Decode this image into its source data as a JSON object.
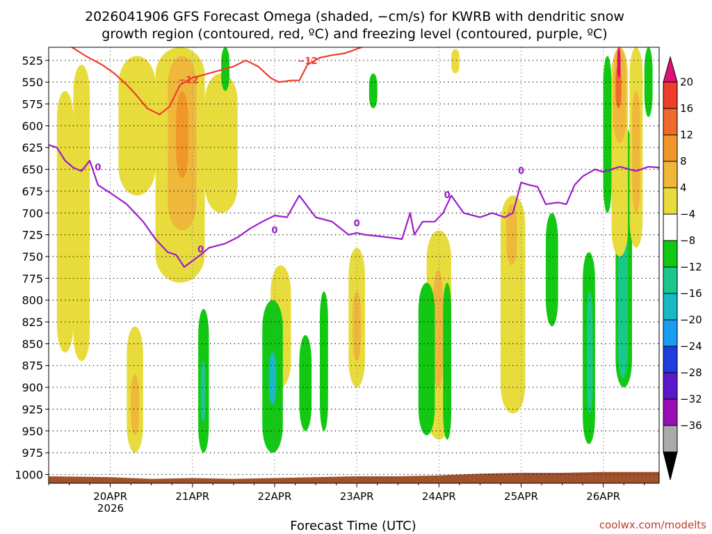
{
  "chart_data": {
    "type": "heatmap",
    "title_line1": "2026041906 GFS Forecast Omega (shaded, −cm/s) for KWRB with dendritic snow",
    "title_line2": "growth region (contoured, red, ºC) and freezing level (contoured, purple, ºC)",
    "xlabel": "Forecast Time (UTC)",
    "credit": "coolwx.com/modelts",
    "y_axis": {
      "unit": "hPa",
      "range": [
        510,
        1010
      ],
      "ticks": [
        525,
        550,
        575,
        600,
        625,
        650,
        675,
        700,
        725,
        750,
        775,
        800,
        825,
        850,
        875,
        900,
        925,
        950,
        975,
        1000
      ],
      "tick_labels": [
        "525",
        "550",
        "575",
        "600",
        "625",
        "650",
        "675",
        "700",
        "725",
        "750",
        "775",
        "800",
        "825",
        "850",
        "875",
        "900",
        "925",
        "950",
        "975",
        "1000"
      ]
    },
    "x_axis": {
      "unit": "days since 2026-04-19 00Z",
      "range": [
        0.25,
        7.68
      ],
      "ticks": [
        1,
        2,
        3,
        4,
        5,
        6,
        7
      ],
      "tick_labels": [
        "20APR",
        "21APR",
        "22APR",
        "23APR",
        "24APR",
        "25APR",
        "26APR"
      ],
      "year_label": "2026"
    },
    "colorbar": {
      "labels": [
        "20",
        "16",
        "12",
        "8",
        "4",
        "−4",
        "−8",
        "−12",
        "−16",
        "−20",
        "−24",
        "−28",
        "−32",
        "−36"
      ],
      "colors": [
        "#e01077",
        "#f03c2b",
        "#f06a2b",
        "#f0962b",
        "#f0b83a",
        "#e8dc3c",
        "#ffffff",
        "#12c812",
        "#19c88a",
        "#17b9c7",
        "#1a9cf0",
        "#1e3ce0",
        "#5a18c8",
        "#9a0fb4",
        "#aaaaaa",
        "#000000"
      ]
    },
    "shading_colors": {
      "yellow": "#e8dc3c",
      "orange": "#f0b83a",
      "dark_orange": "#f0962b",
      "red": "#f06a2b",
      "magenta": "#e01077",
      "green": "#12c812",
      "teal": "#19c88a",
      "cyan": "#17b9c7",
      "ground": "#a0522d"
    },
    "contour_labels": {
      "dgz_red": "−12",
      "freezing_purple": "0"
    },
    "dgz_contour_minus12C": [
      [
        0.25,
        502
      ],
      [
        0.5,
        508
      ],
      [
        0.7,
        520
      ],
      [
        0.9,
        530
      ],
      [
        1.05,
        540
      ],
      [
        1.2,
        553
      ],
      [
        1.3,
        563
      ],
      [
        1.45,
        580
      ],
      [
        1.6,
        587
      ],
      [
        1.72,
        578
      ],
      [
        1.85,
        553
      ],
      [
        2.0,
        545
      ],
      [
        2.2,
        540
      ],
      [
        2.35,
        536
      ],
      [
        2.5,
        532
      ],
      [
        2.65,
        525
      ],
      [
        2.8,
        532
      ],
      [
        2.95,
        545
      ],
      [
        3.05,
        550
      ],
      [
        3.2,
        548
      ],
      [
        3.3,
        548
      ],
      [
        3.4,
        530
      ],
      [
        3.55,
        522
      ],
      [
        3.7,
        519
      ],
      [
        3.85,
        517
      ],
      [
        4.0,
        512
      ],
      [
        4.2,
        505
      ],
      [
        4.5,
        500
      ],
      [
        4.8,
        502
      ],
      [
        5.0,
        499
      ],
      [
        5.3,
        501
      ],
      [
        5.6,
        500
      ],
      [
        6.0,
        502
      ],
      [
        6.5,
        500
      ],
      [
        7.0,
        499
      ],
      [
        7.7,
        500
      ]
    ],
    "freezing_level_0C": [
      [
        0.25,
        622
      ],
      [
        0.35,
        625
      ],
      [
        0.45,
        640
      ],
      [
        0.55,
        648
      ],
      [
        0.65,
        652
      ],
      [
        0.75,
        640
      ],
      [
        0.85,
        668
      ],
      [
        1.0,
        677
      ],
      [
        1.2,
        690
      ],
      [
        1.4,
        710
      ],
      [
        1.55,
        730
      ],
      [
        1.7,
        745
      ],
      [
        1.8,
        748
      ],
      [
        1.9,
        762
      ],
      [
        2.0,
        755
      ],
      [
        2.1,
        748
      ],
      [
        2.2,
        740
      ],
      [
        2.4,
        735
      ],
      [
        2.55,
        728
      ],
      [
        2.7,
        718
      ],
      [
        2.85,
        710
      ],
      [
        3.0,
        703
      ],
      [
        3.15,
        705
      ],
      [
        3.3,
        680
      ],
      [
        3.5,
        705
      ],
      [
        3.7,
        710
      ],
      [
        3.9,
        725
      ],
      [
        4.0,
        723
      ],
      [
        4.1,
        725
      ],
      [
        4.3,
        727
      ],
      [
        4.55,
        730
      ],
      [
        4.65,
        700
      ],
      [
        4.7,
        725
      ],
      [
        4.8,
        710
      ],
      [
        4.95,
        710
      ],
      [
        5.05,
        700
      ],
      [
        5.15,
        680
      ],
      [
        5.3,
        700
      ],
      [
        5.5,
        705
      ],
      [
        5.65,
        700
      ],
      [
        5.8,
        705
      ],
      [
        5.9,
        700
      ],
      [
        6.0,
        665
      ],
      [
        6.1,
        668
      ],
      [
        6.2,
        670
      ],
      [
        6.3,
        690
      ],
      [
        6.45,
        688
      ],
      [
        6.55,
        690
      ],
      [
        6.65,
        668
      ],
      [
        6.75,
        658
      ],
      [
        6.9,
        650
      ],
      [
        7.0,
        653
      ],
      [
        7.2,
        647
      ],
      [
        7.4,
        652
      ],
      [
        7.55,
        647
      ],
      [
        7.68,
        648
      ]
    ],
    "ground_pressure": [
      [
        0.25,
        1002
      ],
      [
        1.0,
        1003
      ],
      [
        1.5,
        1005
      ],
      [
        2.0,
        1004
      ],
      [
        2.5,
        1005
      ],
      [
        3.0,
        1004
      ],
      [
        3.5,
        1003
      ],
      [
        4.0,
        1002
      ],
      [
        4.5,
        1002
      ],
      [
        5.0,
        1001
      ],
      [
        5.5,
        999
      ],
      [
        6.0,
        998
      ],
      [
        6.5,
        998
      ],
      [
        7.0,
        997
      ],
      [
        7.68,
        997
      ]
    ],
    "omega_regions": [
      {
        "color": "yellow",
        "x": [
          0.35,
          0.55
        ],
        "p": [
          560,
          860
        ]
      },
      {
        "color": "yellow",
        "x": [
          0.55,
          0.75
        ],
        "p": [
          530,
          870
        ]
      },
      {
        "color": "yellow",
        "x": [
          1.1,
          1.55
        ],
        "p": [
          520,
          680
        ]
      },
      {
        "color": "yellow",
        "x": [
          1.55,
          2.15
        ],
        "p": [
          510,
          780
        ]
      },
      {
        "color": "orange",
        "x": [
          1.7,
          2.05
        ],
        "p": [
          520,
          720
        ]
      },
      {
        "color": "dark_orange",
        "x": [
          1.8,
          1.95
        ],
        "p": [
          560,
          660
        ]
      },
      {
        "color": "yellow",
        "x": [
          2.15,
          2.55
        ],
        "p": [
          540,
          700
        ]
      },
      {
        "color": "yellow",
        "x": [
          1.2,
          1.4
        ],
        "p": [
          830,
          975
        ]
      },
      {
        "color": "orange",
        "x": [
          1.25,
          1.35
        ],
        "p": [
          885,
          955
        ]
      },
      {
        "color": "yellow",
        "x": [
          2.95,
          3.2
        ],
        "p": [
          760,
          900
        ]
      },
      {
        "color": "yellow",
        "x": [
          3.9,
          4.1
        ],
        "p": [
          740,
          900
        ]
      },
      {
        "color": "orange",
        "x": [
          3.95,
          4.05
        ],
        "p": [
          790,
          870
        ]
      },
      {
        "color": "yellow",
        "x": [
          4.85,
          5.15
        ],
        "p": [
          720,
          960
        ]
      },
      {
        "color": "orange",
        "x": [
          4.93,
          5.05
        ],
        "p": [
          765,
          900
        ]
      },
      {
        "color": "yellow",
        "x": [
          5.75,
          6.05
        ],
        "p": [
          680,
          930
        ]
      },
      {
        "color": "orange",
        "x": [
          5.82,
          5.95
        ],
        "p": [
          690,
          760
        ]
      },
      {
        "color": "green",
        "x": [
          2.07,
          2.2
        ],
        "p": [
          810,
          975
        ]
      },
      {
        "color": "teal",
        "x": [
          2.1,
          2.16
        ],
        "p": [
          870,
          940
        ]
      },
      {
        "color": "green",
        "x": [
          2.85,
          3.1
        ],
        "p": [
          800,
          975
        ]
      },
      {
        "color": "cyan",
        "x": [
          2.93,
          3.02
        ],
        "p": [
          860,
          920
        ]
      },
      {
        "color": "green",
        "x": [
          3.3,
          3.45
        ],
        "p": [
          840,
          950
        ]
      },
      {
        "color": "green",
        "x": [
          3.55,
          3.65
        ],
        "p": [
          790,
          950
        ]
      },
      {
        "color": "green",
        "x": [
          4.75,
          4.95
        ],
        "p": [
          780,
          955
        ]
      },
      {
        "color": "green",
        "x": [
          5.05,
          5.15
        ],
        "p": [
          780,
          960
        ]
      },
      {
        "color": "green",
        "x": [
          6.3,
          6.45
        ],
        "p": [
          700,
          830
        ]
      },
      {
        "color": "green",
        "x": [
          6.75,
          6.9
        ],
        "p": [
          745,
          965
        ]
      },
      {
        "color": "teal",
        "x": [
          6.8,
          6.87
        ],
        "p": [
          790,
          930
        ]
      },
      {
        "color": "green",
        "x": [
          7.0,
          7.1
        ],
        "p": [
          520,
          700
        ]
      },
      {
        "color": "green",
        "x": [
          7.15,
          7.35
        ],
        "p": [
          600,
          900
        ]
      },
      {
        "color": "teal",
        "x": [
          7.18,
          7.3
        ],
        "p": [
          640,
          890
        ]
      },
      {
        "color": "yellow",
        "x": [
          7.1,
          7.3
        ],
        "p": [
          510,
          750
        ]
      },
      {
        "color": "orange",
        "x": [
          7.12,
          7.28
        ],
        "p": [
          510,
          620
        ]
      },
      {
        "color": "red",
        "x": [
          7.15,
          7.22
        ],
        "p": [
          530,
          580
        ]
      },
      {
        "color": "magenta",
        "x": [
          7.17,
          7.21
        ],
        "p": [
          510,
          545
        ]
      },
      {
        "color": "yellow",
        "x": [
          7.32,
          7.48
        ],
        "p": [
          510,
          740
        ]
      },
      {
        "color": "orange",
        "x": [
          7.35,
          7.45
        ],
        "p": [
          560,
          700
        ]
      },
      {
        "color": "green",
        "x": [
          7.5,
          7.6
        ],
        "p": [
          510,
          590
        ]
      },
      {
        "color": "yellow",
        "x": [
          5.15,
          5.25
        ],
        "p": [
          512,
          540
        ]
      },
      {
        "color": "green",
        "x": [
          2.35,
          2.45
        ],
        "p": [
          510,
          560
        ]
      },
      {
        "color": "green",
        "x": [
          4.15,
          4.25
        ],
        "p": [
          540,
          580
        ]
      }
    ]
  }
}
